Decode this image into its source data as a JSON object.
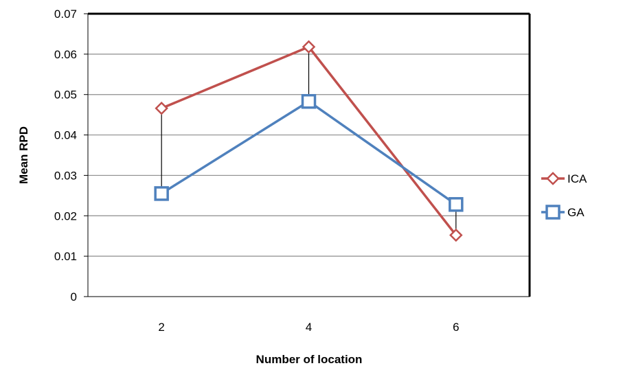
{
  "chart_data": {
    "type": "line",
    "title": "",
    "xlabel": "Number of location",
    "ylabel": "Mean RPD",
    "categories": [
      "2",
      "4",
      "6"
    ],
    "ylim": [
      0,
      0.07
    ],
    "yticks": [
      "0",
      "0.01",
      "0.02",
      "0.03",
      "0.04",
      "0.05",
      "0.06",
      "0.07"
    ],
    "grid": true,
    "legend_position": "right",
    "hi_lo_lines": true,
    "series": [
      {
        "name": "ICA",
        "values": [
          0.0466,
          0.0618,
          0.0152
        ],
        "color": "#C0504D",
        "marker": "diamond"
      },
      {
        "name": "GA",
        "values": [
          0.0255,
          0.0483,
          0.0228
        ],
        "color": "#4F81BD",
        "marker": "square"
      }
    ]
  }
}
